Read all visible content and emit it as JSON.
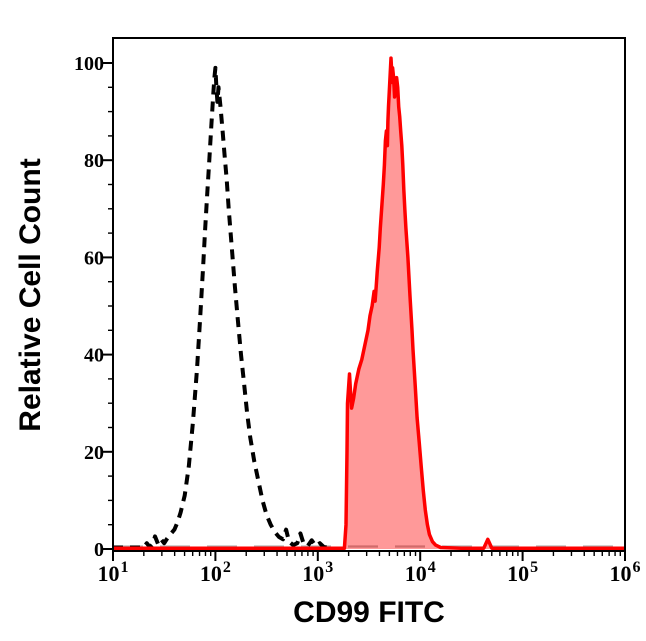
{
  "figure": {
    "background": "#ffffff"
  },
  "chart_data": {
    "type": "area",
    "subtype": "flow-cytometry-histogram",
    "title": "",
    "xlabel": "CD99 FITC",
    "ylabel": "Relative Cell Count",
    "x_scale": "log10",
    "x_range_log10": [
      1,
      6
    ],
    "ylim": [
      0,
      100
    ],
    "grid": false,
    "legend": null,
    "x_ticks": [
      {
        "log10": 1,
        "label_base": "10",
        "label_exp": "1"
      },
      {
        "log10": 2,
        "label_base": "10",
        "label_exp": "2"
      },
      {
        "log10": 3,
        "label_base": "10",
        "label_exp": "3"
      },
      {
        "log10": 4,
        "label_base": "10",
        "label_exp": "4"
      },
      {
        "log10": 5,
        "label_base": "10",
        "label_exp": "5"
      },
      {
        "log10": 6,
        "label_base": "10",
        "label_exp": "6"
      }
    ],
    "y_ticks": [
      {
        "value": 0,
        "label": "0"
      },
      {
        "value": 20,
        "label": "20"
      },
      {
        "value": 40,
        "label": "40"
      },
      {
        "value": 60,
        "label": "60"
      },
      {
        "value": 80,
        "label": "80"
      },
      {
        "value": 100,
        "label": "100"
      }
    ],
    "y_minor_step": 5,
    "series": [
      {
        "name": "dashed-control-histogram",
        "style": "dashed",
        "color": "#000000",
        "fill": "none",
        "peak_log10x": 2.0,
        "peak_count": 99,
        "points_log10x_count": [
          [
            1.0,
            0.3
          ],
          [
            1.3,
            0.3
          ],
          [
            1.33,
            1.2
          ],
          [
            1.36,
            0.4
          ],
          [
            1.39,
            1.0
          ],
          [
            1.41,
            2.6
          ],
          [
            1.44,
            1.0
          ],
          [
            1.47,
            2.0
          ],
          [
            1.5,
            1.2
          ],
          [
            1.53,
            2.2
          ],
          [
            1.56,
            3.0
          ],
          [
            1.6,
            4.0
          ],
          [
            1.63,
            5.5
          ],
          [
            1.66,
            7.5
          ],
          [
            1.7,
            11
          ],
          [
            1.74,
            17
          ],
          [
            1.78,
            26
          ],
          [
            1.82,
            37
          ],
          [
            1.85,
            47
          ],
          [
            1.88,
            58
          ],
          [
            1.9,
            66
          ],
          [
            1.92,
            73
          ],
          [
            1.94,
            80
          ],
          [
            1.96,
            87
          ],
          [
            1.98,
            94
          ],
          [
            1.99,
            97
          ],
          [
            2.0,
            99
          ],
          [
            2.01,
            95
          ],
          [
            2.02,
            92
          ],
          [
            2.03,
            95
          ],
          [
            2.05,
            91
          ],
          [
            2.07,
            86
          ],
          [
            2.09,
            81
          ],
          [
            2.11,
            76
          ],
          [
            2.13,
            70
          ],
          [
            2.16,
            62
          ],
          [
            2.19,
            54
          ],
          [
            2.22,
            47
          ],
          [
            2.25,
            40
          ],
          [
            2.28,
            34
          ],
          [
            2.31,
            28
          ],
          [
            2.34,
            23
          ],
          [
            2.38,
            18
          ],
          [
            2.42,
            14
          ],
          [
            2.46,
            10
          ],
          [
            2.5,
            7
          ],
          [
            2.54,
            5
          ],
          [
            2.58,
            3.5
          ],
          [
            2.62,
            2.5
          ],
          [
            2.66,
            2.0
          ],
          [
            2.69,
            4.0
          ],
          [
            2.72,
            1.5
          ],
          [
            2.76,
            0.8
          ],
          [
            2.8,
            1.2
          ],
          [
            2.83,
            3.2
          ],
          [
            2.86,
            1.2
          ],
          [
            2.9,
            0.6
          ],
          [
            2.94,
            1.8
          ],
          [
            2.98,
            0.6
          ],
          [
            3.02,
            1.2
          ],
          [
            3.06,
            0.4
          ],
          [
            3.1,
            0.3
          ],
          [
            3.14,
            0.3
          ]
        ],
        "baseline_overlap_color": "#b3b3b3"
      },
      {
        "name": "red-filled-stained-histogram",
        "style": "solid",
        "color": "#ff0000",
        "fill": "rgba(255,0,0,0.40)",
        "peak_log10x": 3.715,
        "peak_count": 101,
        "points_log10x_count": [
          [
            1.0,
            0.15
          ],
          [
            3.26,
            0.15
          ],
          [
            3.275,
            5
          ],
          [
            3.285,
            20
          ],
          [
            3.29,
            30
          ],
          [
            3.3,
            33
          ],
          [
            3.31,
            36
          ],
          [
            3.32,
            32
          ],
          [
            3.33,
            29
          ],
          [
            3.35,
            31
          ],
          [
            3.37,
            34
          ],
          [
            3.4,
            37
          ],
          [
            3.43,
            39
          ],
          [
            3.46,
            42
          ],
          [
            3.49,
            45
          ],
          [
            3.51,
            48
          ],
          [
            3.53,
            50
          ],
          [
            3.55,
            53
          ],
          [
            3.56,
            51
          ],
          [
            3.57,
            54
          ],
          [
            3.58,
            57
          ],
          [
            3.6,
            62
          ],
          [
            3.61,
            66
          ],
          [
            3.62,
            69
          ],
          [
            3.63,
            72
          ],
          [
            3.64,
            75
          ],
          [
            3.65,
            79
          ],
          [
            3.66,
            84
          ],
          [
            3.67,
            86
          ],
          [
            3.68,
            83
          ],
          [
            3.685,
            88
          ],
          [
            3.69,
            91
          ],
          [
            3.7,
            95
          ],
          [
            3.71,
            99
          ],
          [
            3.715,
            101
          ],
          [
            3.72,
            99
          ],
          [
            3.725,
            96
          ],
          [
            3.73,
            99
          ],
          [
            3.74,
            97
          ],
          [
            3.75,
            93
          ],
          [
            3.76,
            95
          ],
          [
            3.77,
            97
          ],
          [
            3.78,
            95
          ],
          [
            3.79,
            91
          ],
          [
            3.8,
            89
          ],
          [
            3.81,
            86
          ],
          [
            3.82,
            83
          ],
          [
            3.83,
            79
          ],
          [
            3.84,
            74
          ],
          [
            3.85,
            70
          ],
          [
            3.86,
            66
          ],
          [
            3.87,
            63
          ],
          [
            3.88,
            60
          ],
          [
            3.9,
            52
          ],
          [
            3.92,
            45
          ],
          [
            3.93,
            41
          ],
          [
            3.95,
            34
          ],
          [
            3.97,
            27
          ],
          [
            3.99,
            22
          ],
          [
            4.01,
            17
          ],
          [
            4.03,
            12
          ],
          [
            4.05,
            8
          ],
          [
            4.07,
            5
          ],
          [
            4.09,
            3
          ],
          [
            4.12,
            1.5
          ],
          [
            4.15,
            0.8
          ],
          [
            4.2,
            0.3
          ],
          [
            4.4,
            0.15
          ],
          [
            4.62,
            0.15
          ],
          [
            4.66,
            2.0
          ],
          [
            4.7,
            0.15
          ],
          [
            6.0,
            0.15
          ]
        ]
      }
    ]
  }
}
